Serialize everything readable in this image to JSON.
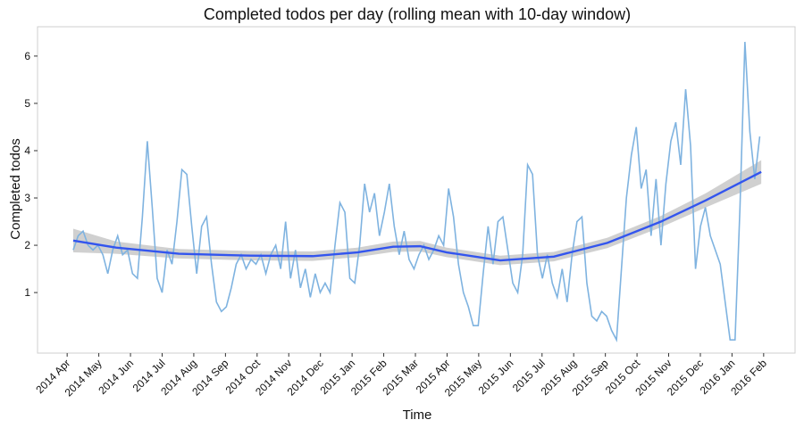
{
  "chart_data": {
    "type": "line",
    "title": "Completed todos per day (rolling mean with 10-day window)",
    "x_label": "Time",
    "y_label": "Completed todos",
    "color": "#7fb3e0",
    "x": [
      2014.266,
      2014.279,
      2014.292,
      2014.305,
      2014.318,
      2014.331,
      2014.344,
      2014.357,
      2014.37,
      2014.383,
      2014.396,
      2014.409,
      2014.422,
      2014.435,
      2014.448,
      2014.461,
      2014.474,
      2014.487,
      2014.5,
      2014.513,
      2014.526,
      2014.539,
      2014.552,
      2014.565,
      2014.578,
      2014.591,
      2014.604,
      2014.617,
      2014.63,
      2014.643,
      2014.656,
      2014.669,
      2014.682,
      2014.695,
      2014.708,
      2014.721,
      2014.734,
      2014.747,
      2014.76,
      2014.773,
      2014.786,
      2014.799,
      2014.812,
      2014.825,
      2014.838,
      2014.851,
      2014.864,
      2014.877,
      2014.89,
      2014.903,
      2014.916,
      2014.929,
      2014.942,
      2014.955,
      2014.968,
      2014.981,
      2014.994,
      2015.007,
      2015.02,
      2015.033,
      2015.046,
      2015.059,
      2015.072,
      2015.085,
      2015.098,
      2015.111,
      2015.124,
      2015.137,
      2015.15,
      2015.163,
      2015.176,
      2015.189,
      2015.202,
      2015.215,
      2015.228,
      2015.241,
      2015.254,
      2015.267,
      2015.28,
      2015.293,
      2015.306,
      2015.319,
      2015.332,
      2015.345,
      2015.358,
      2015.371,
      2015.384,
      2015.397,
      2015.41,
      2015.423,
      2015.436,
      2015.449,
      2015.462,
      2015.475,
      2015.488,
      2015.501,
      2015.514,
      2015.527,
      2015.54,
      2015.553,
      2015.566,
      2015.579,
      2015.592,
      2015.605,
      2015.618,
      2015.631,
      2015.644,
      2015.657,
      2015.67,
      2015.683,
      2015.696,
      2015.709,
      2015.722,
      2015.735,
      2015.748,
      2015.761,
      2015.774,
      2015.787,
      2015.8,
      2015.813,
      2015.826,
      2015.839,
      2015.852,
      2015.865,
      2015.878,
      2015.891,
      2015.904,
      2015.917,
      2015.93,
      2015.943,
      2015.956,
      2015.969,
      2015.982,
      2015.995,
      2016.008,
      2016.021,
      2016.034,
      2016.047,
      2016.06,
      2016.073
    ],
    "values": [
      1.9,
      2.2,
      2.3,
      2.0,
      1.9,
      2.0,
      1.8,
      1.4,
      1.9,
      2.2,
      1.8,
      1.9,
      1.4,
      1.3,
      2.6,
      4.2,
      2.8,
      1.3,
      1.0,
      1.9,
      1.6,
      2.5,
      3.6,
      3.5,
      2.4,
      1.4,
      2.4,
      2.6,
      1.6,
      0.8,
      0.6,
      0.7,
      1.1,
      1.6,
      1.8,
      1.5,
      1.7,
      1.6,
      1.8,
      1.4,
      1.8,
      2.0,
      1.5,
      2.5,
      1.3,
      1.9,
      1.1,
      1.5,
      0.9,
      1.4,
      1.0,
      1.2,
      1.0,
      2.0,
      2.9,
      2.7,
      1.3,
      1.2,
      2.0,
      3.3,
      2.7,
      3.1,
      2.2,
      2.7,
      3.3,
      2.4,
      1.8,
      2.3,
      1.7,
      1.5,
      1.8,
      2.0,
      1.7,
      1.9,
      2.2,
      2.0,
      3.2,
      2.6,
      1.6,
      1.0,
      0.7,
      0.3,
      0.3,
      1.4,
      2.4,
      1.6,
      2.5,
      2.6,
      1.9,
      1.2,
      1.0,
      1.8,
      3.7,
      3.5,
      1.8,
      1.3,
      1.8,
      1.2,
      0.9,
      1.5,
      0.8,
      1.8,
      2.5,
      2.6,
      1.2,
      0.5,
      0.4,
      0.6,
      0.5,
      0.2,
      0.0,
      1.5,
      3.0,
      3.9,
      4.5,
      3.2,
      3.6,
      2.2,
      3.4,
      2.0,
      3.3,
      4.2,
      4.6,
      3.7,
      5.3,
      4.1,
      1.5,
      2.4,
      2.8,
      2.2,
      1.9,
      1.6,
      0.8,
      0.0,
      0.0,
      2.8,
      6.3,
      4.4,
      3.4,
      4.3
    ],
    "smooth": {
      "color": "#3355ee",
      "band_color": "#c8c8c8",
      "x": [
        2014.266,
        2014.379,
        2014.544,
        2014.732,
        2014.896,
        2015.014,
        2015.108,
        2015.179,
        2015.249,
        2015.39,
        2015.531,
        2015.672,
        2015.813,
        2015.931,
        2016.077
      ],
      "values": [
        2.1,
        1.95,
        1.82,
        1.78,
        1.77,
        1.85,
        1.97,
        1.98,
        1.85,
        1.68,
        1.76,
        2.05,
        2.5,
        2.95,
        3.55
      ],
      "lower": [
        1.85,
        1.82,
        1.72,
        1.68,
        1.67,
        1.75,
        1.86,
        1.87,
        1.75,
        1.58,
        1.66,
        1.94,
        2.38,
        2.8,
        3.3
      ],
      "upper": [
        2.35,
        2.08,
        1.92,
        1.88,
        1.87,
        1.95,
        2.08,
        2.09,
        1.95,
        1.78,
        1.86,
        2.16,
        2.62,
        3.1,
        3.8
      ]
    },
    "xlim": [
      2014.172,
      2016.166
    ],
    "ylim": [
      -0.28,
      6.62
    ],
    "yticks": [
      1,
      2,
      3,
      4,
      5,
      6
    ],
    "xticks": [
      {
        "value": 2014.25,
        "label": "2014 Apr"
      },
      {
        "value": 2014.3333,
        "label": "2014 May"
      },
      {
        "value": 2014.4167,
        "label": "2014 Jun"
      },
      {
        "value": 2014.5,
        "label": "2014 Jul"
      },
      {
        "value": 2014.5833,
        "label": "2014 Aug"
      },
      {
        "value": 2014.6667,
        "label": "2014 Sep"
      },
      {
        "value": 2014.75,
        "label": "2014 Oct"
      },
      {
        "value": 2014.8333,
        "label": "2014 Nov"
      },
      {
        "value": 2014.9167,
        "label": "2014 Dec"
      },
      {
        "value": 2015.0,
        "label": "2015 Jan"
      },
      {
        "value": 2015.0833,
        "label": "2015 Feb"
      },
      {
        "value": 2015.1667,
        "label": "2015 Mar"
      },
      {
        "value": 2015.25,
        "label": "2015 Apr"
      },
      {
        "value": 2015.3333,
        "label": "2015 May"
      },
      {
        "value": 2015.4167,
        "label": "2015 Jun"
      },
      {
        "value": 2015.5,
        "label": "2015 Jul"
      },
      {
        "value": 2015.5833,
        "label": "2015 Aug"
      },
      {
        "value": 2015.6667,
        "label": "2015 Sep"
      },
      {
        "value": 2015.75,
        "label": "2015 Oct"
      },
      {
        "value": 2015.8333,
        "label": "2015 Nov"
      },
      {
        "value": 2015.9167,
        "label": "2015 Dec"
      },
      {
        "value": 2016.0,
        "label": "2016 Jan"
      },
      {
        "value": 2016.0833,
        "label": "2016 Feb"
      }
    ]
  }
}
